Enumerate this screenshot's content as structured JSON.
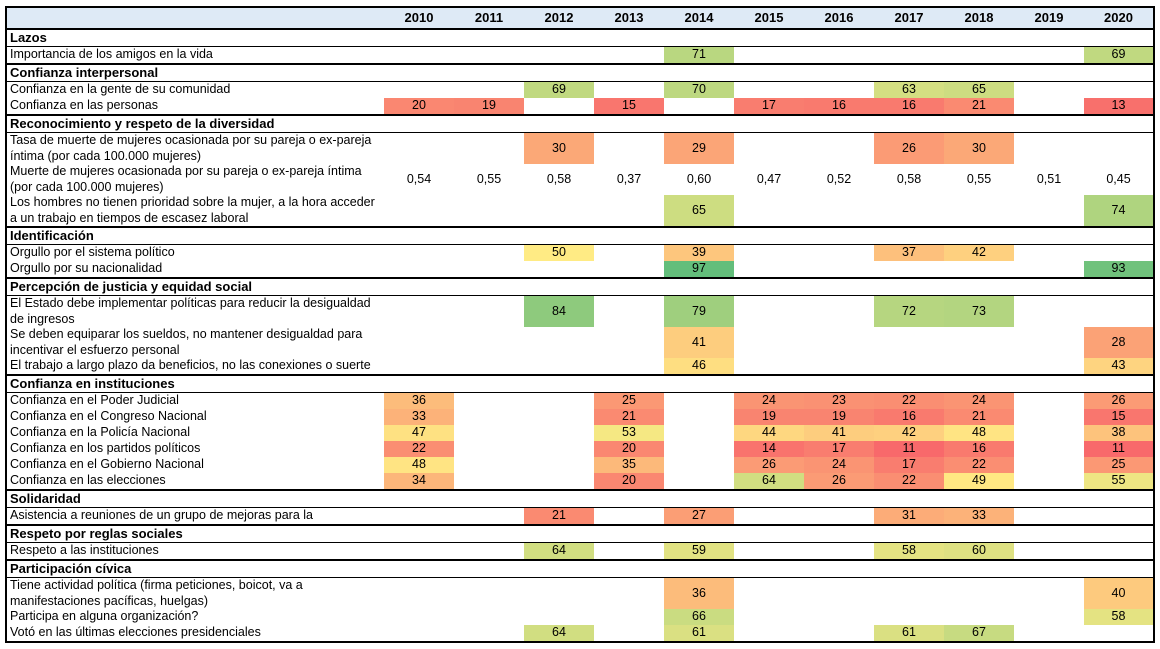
{
  "chart_data": {
    "type": "heatmap",
    "title": "",
    "x": [
      "2010",
      "2011",
      "2012",
      "2013",
      "2014",
      "2015",
      "2016",
      "2017",
      "2018",
      "2019",
      "2020"
    ],
    "legend_position": "none",
    "header_bg": "#DEEAF6",
    "border_color": "#000000",
    "color_scale": {
      "min": 11,
      "mid": 50,
      "max": 97,
      "min_color": "#F8696B",
      "mid_color": "#FFEB84",
      "max_color": "#63BE7B"
    },
    "rows": [
      {
        "type": "section",
        "label": "Lazos"
      },
      {
        "type": "data",
        "label": "Importancia de los amigos en la vida",
        "values": {
          "2014": 71,
          "2020": 69
        }
      },
      {
        "type": "section",
        "label": "Confianza interpersonal"
      },
      {
        "type": "data",
        "label": "Confianza en la gente de su comunidad",
        "values": {
          "2012": 69,
          "2014": 70,
          "2017": 63,
          "2018": 65
        }
      },
      {
        "type": "data",
        "label": "Confianza en las personas",
        "values": {
          "2010": 20,
          "2011": 19,
          "2013": 15,
          "2015": 17,
          "2016": 16,
          "2017": 16,
          "2018": 21,
          "2020": 13
        }
      },
      {
        "type": "section",
        "label": "Reconocimiento y respeto de la diversidad"
      },
      {
        "type": "data",
        "label": "Tasa de muerte de mujeres ocasionada por su pareja o ex-pareja íntima (por cada 100.000 mujeres)",
        "values": {
          "2012": 30,
          "2014": 29,
          "2017": 26,
          "2018": 30
        }
      },
      {
        "type": "data",
        "label": "Muerte de mujeres ocasionada por su pareja o ex-pareja íntima (por cada 100.000 mujeres)",
        "no_fill": true,
        "values": {
          "2010": "0,54",
          "2011": "0,55",
          "2012": "0,58",
          "2013": "0,37",
          "2014": "0,60",
          "2015": "0,47",
          "2016": "0,52",
          "2017": "0,58",
          "2018": "0,55",
          "2019": "0,51",
          "2020": "0,45"
        }
      },
      {
        "type": "data",
        "label": "Los hombres no tienen prioridad sobre la mujer, a la hora acceder a un trabajo en tiempos de escasez laboral",
        "values": {
          "2014": 65,
          "2020": 74
        }
      },
      {
        "type": "section",
        "label": "Identificación"
      },
      {
        "type": "data",
        "label": "Orgullo por el sistema político",
        "values": {
          "2012": 50,
          "2014": 39,
          "2017": 37,
          "2018": 42
        }
      },
      {
        "type": "data",
        "label": "Orgullo por su nacionalidad",
        "values": {
          "2014": 97,
          "2020": 93
        }
      },
      {
        "type": "section",
        "label": "Percepción de justicia y equidad social"
      },
      {
        "type": "data",
        "label": "El Estado debe implementar políticas para reducir la desigualdad de ingresos",
        "values": {
          "2012": 84,
          "2014": 79,
          "2017": 72,
          "2018": 73
        }
      },
      {
        "type": "data",
        "label": "Se deben equiparar los sueldos, no mantener desigualdad para incentivar el esfuerzo personal",
        "values": {
          "2014": 41,
          "2020": 28
        }
      },
      {
        "type": "data",
        "label": "El trabajo a largo plazo da beneficios, no las conexiones o suerte",
        "values": {
          "2014": 46,
          "2020": 43
        }
      },
      {
        "type": "section",
        "label": "Confianza en instituciones"
      },
      {
        "type": "data",
        "label": "Confianza en el Poder Judicial",
        "values": {
          "2010": 36,
          "2013": 25,
          "2015": 24,
          "2016": 23,
          "2017": 22,
          "2018": 24,
          "2020": 26
        }
      },
      {
        "type": "data",
        "label": "Confianza en el Congreso Nacional",
        "values": {
          "2010": 33,
          "2013": 21,
          "2015": 19,
          "2016": 19,
          "2017": 16,
          "2018": 21,
          "2020": 15
        }
      },
      {
        "type": "data",
        "label": "Confianza en la Policía Nacional",
        "values": {
          "2010": 47,
          "2013": 53,
          "2015": 44,
          "2016": 41,
          "2017": 42,
          "2018": 48,
          "2020": 38
        }
      },
      {
        "type": "data",
        "label": "Confianza en los partidos políticos",
        "values": {
          "2010": 22,
          "2013": 20,
          "2015": 14,
          "2016": 17,
          "2017": 11,
          "2018": 16,
          "2020": 11
        }
      },
      {
        "type": "data",
        "label": "Confianza en el Gobierno Nacional",
        "values": {
          "2010": 48,
          "2013": 35,
          "2015": 26,
          "2016": 24,
          "2017": 17,
          "2018": 22,
          "2020": 25
        }
      },
      {
        "type": "data",
        "label": "Confianza en las elecciones",
        "values": {
          "2010": 34,
          "2013": 20,
          "2015": 64,
          "2016": 26,
          "2017": 22,
          "2018": 49,
          "2020": 55
        }
      },
      {
        "type": "section",
        "label": "Solidaridad"
      },
      {
        "type": "data",
        "label": "Asistencia a reuniones de un grupo de mejoras para la",
        "values": {
          "2012": 21,
          "2014": 27,
          "2017": 31,
          "2018": 33
        }
      },
      {
        "type": "section",
        "label": "Respeto por reglas sociales"
      },
      {
        "type": "data",
        "label": "Respeto a las instituciones",
        "values": {
          "2012": 64,
          "2014": 59,
          "2017": 58,
          "2018": 60
        }
      },
      {
        "type": "section",
        "label": "Participación cívica"
      },
      {
        "type": "data",
        "label": "Tiene actividad política (firma peticiones, boicot, va a manifestaciones pacíficas, huelgas)",
        "values": {
          "2014": 36,
          "2020": 40
        }
      },
      {
        "type": "data",
        "label": "Participa en alguna organización?",
        "values": {
          "2014": 66,
          "2020": 58
        }
      },
      {
        "type": "data",
        "label": "Votó en las últimas elecciones presidenciales",
        "values": {
          "2012": 64,
          "2014": 61,
          "2017": 61,
          "2018": 67
        }
      }
    ]
  }
}
